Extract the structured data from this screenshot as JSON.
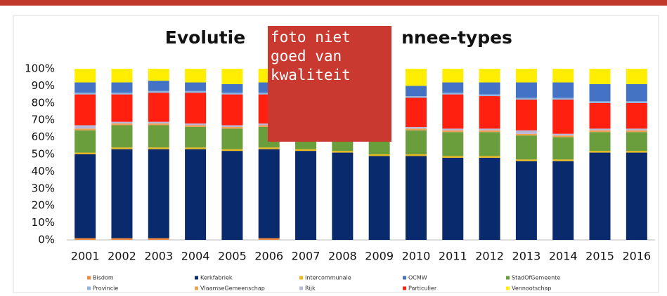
{
  "chart_data": {
    "type": "stacked_bar",
    "title_parts": [
      "Evolutie",
      "nnee-types"
    ],
    "annotation_lines": [
      "foto niet",
      "goed van",
      "kwaliteit"
    ],
    "categories": [
      "2001",
      "2002",
      "2003",
      "2004",
      "2005",
      "2006",
      "2007",
      "2008",
      "2009",
      "2010",
      "2011",
      "2012",
      "2013",
      "2014",
      "2015",
      "2016"
    ],
    "ylim": [
      0,
      100
    ],
    "yticks": [
      {
        "value": 0,
        "label": "0%"
      },
      {
        "value": 10,
        "label": "10%"
      },
      {
        "value": 20,
        "label": "20%"
      },
      {
        "value": 30,
        "label": "30%"
      },
      {
        "value": 40,
        "label": "40%"
      },
      {
        "value": 50,
        "label": "50%"
      },
      {
        "value": 60,
        "label": "60%"
      },
      {
        "value": 70,
        "label": "70%"
      },
      {
        "value": 80,
        "label": "80%"
      },
      {
        "value": 90,
        "label": "90%"
      },
      {
        "value": 100,
        "label": "100%"
      }
    ],
    "series": [
      {
        "name": "Bisdom",
        "color": "#f08a3c",
        "values": [
          1,
          1,
          1,
          0,
          0,
          1,
          0,
          0,
          0,
          0,
          0,
          0,
          0,
          0,
          0,
          0
        ]
      },
      {
        "name": "Kerkfabriek",
        "color": "#0a2a6e",
        "values": [
          49,
          52,
          52,
          53,
          52,
          52,
          52,
          51,
          49,
          49,
          48,
          48,
          46,
          46,
          51,
          51
        ]
      },
      {
        "name": "Intercommunale",
        "color": "#e8b820",
        "values": [
          1,
          1,
          1,
          1,
          1,
          1,
          1,
          1,
          1,
          1,
          1,
          1,
          1,
          1,
          1,
          1
        ]
      },
      {
        "name": "StadOfGemeente",
        "color": "#6a9e3c",
        "values": [
          13,
          13,
          13,
          12,
          12,
          12,
          12,
          13,
          14,
          14,
          14,
          14,
          14,
          13,
          11,
          11
        ]
      },
      {
        "name": "VlaamseGemeenschap",
        "color": "#f0a050",
        "values": [
          1,
          1,
          1,
          1,
          1,
          1,
          1,
          1,
          1,
          1,
          1,
          1,
          1,
          1,
          1,
          1
        ]
      },
      {
        "name": "Rijk",
        "color": "#b8b8d8",
        "values": [
          2,
          1,
          1,
          1,
          1,
          1,
          1,
          1,
          1,
          1,
          1,
          1,
          2,
          1,
          1,
          1
        ]
      },
      {
        "name": "Particulier",
        "color": "#ff2010",
        "values": [
          18,
          16,
          17,
          18,
          18,
          17,
          18,
          18,
          19,
          17,
          20,
          19,
          18,
          20,
          15,
          15
        ]
      },
      {
        "name": "Provincie",
        "color": "#8fb4e0",
        "values": [
          1,
          1,
          1,
          1,
          1,
          1,
          1,
          1,
          1,
          1,
          1,
          1,
          1,
          1,
          1,
          1
        ]
      },
      {
        "name": "OCMW",
        "color": "#4472c4",
        "values": [
          6,
          6,
          6,
          5,
          5,
          6,
          6,
          6,
          6,
          6,
          6,
          7,
          9,
          9,
          10,
          10
        ]
      },
      {
        "name": "Vennootschap",
        "color": "#ffee00",
        "values": [
          8,
          8,
          7,
          8,
          9,
          8,
          8,
          8,
          8,
          10,
          8,
          8,
          8,
          8,
          9,
          9
        ]
      }
    ]
  }
}
